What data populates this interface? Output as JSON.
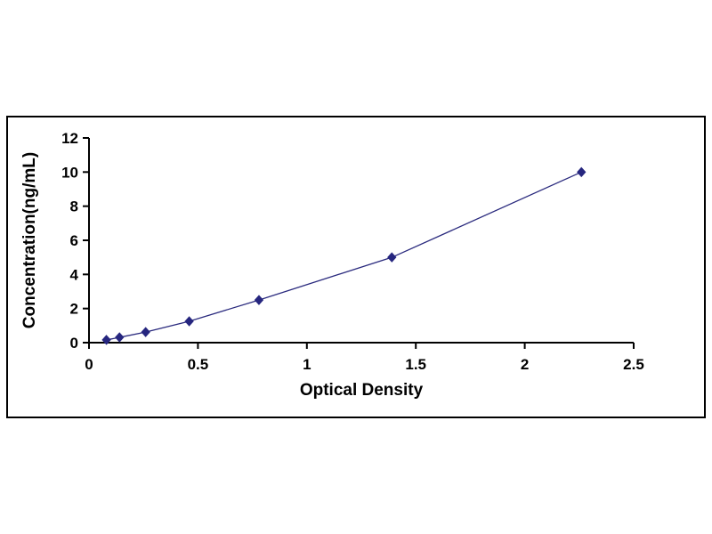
{
  "page": {
    "background_color": "#ffffff"
  },
  "chart_data": {
    "type": "line",
    "title": "",
    "xlabel": "Optical Density",
    "ylabel": "Concentration(ng/mL)",
    "points": [
      {
        "x": 0.08,
        "y": 0.16
      },
      {
        "x": 0.14,
        "y": 0.31
      },
      {
        "x": 0.26,
        "y": 0.62
      },
      {
        "x": 0.46,
        "y": 1.25
      },
      {
        "x": 0.78,
        "y": 2.5
      },
      {
        "x": 1.39,
        "y": 5.0
      },
      {
        "x": 2.26,
        "y": 10.0
      }
    ],
    "xlim": [
      0,
      2.5
    ],
    "ylim": [
      0,
      12
    ],
    "x_ticks": [
      0,
      0.5,
      1,
      1.5,
      2,
      2.5
    ],
    "x_tick_labels": [
      "0",
      "0.5",
      "1",
      "1.5",
      "2",
      "2.5"
    ],
    "y_ticks": [
      0,
      2,
      4,
      6,
      8,
      10,
      12
    ],
    "y_tick_labels": [
      "0",
      "2",
      "4",
      "6",
      "8",
      "10",
      "12"
    ],
    "grid": false,
    "legend": "none",
    "marker": "diamond",
    "line_color": "#2a2a7e",
    "marker_color": "#26267f",
    "axis_color": "#000000",
    "frame_border_color": "#000000"
  }
}
